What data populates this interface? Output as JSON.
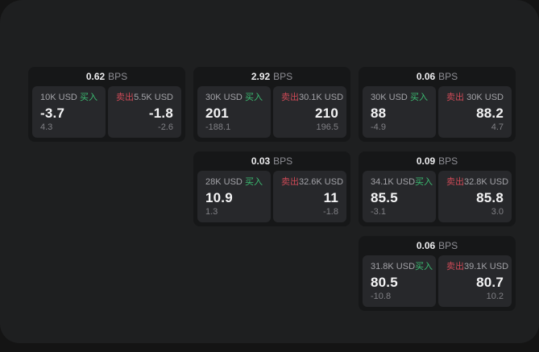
{
  "labels": {
    "bps_suffix": "BPS",
    "buy": "买入",
    "sell": "卖出"
  },
  "colors": {
    "buy_accent": "#3BBD72",
    "sell_accent": "#CE4A57",
    "panel_bg": "#1E1F20",
    "card_bg": "#161718",
    "pane_bg": "#27282B"
  },
  "cards": [
    {
      "col": 1,
      "row": 1,
      "bps": "0.62",
      "buy": {
        "amount": "10K USD",
        "value": "-3.7",
        "delta": "4.3"
      },
      "sell": {
        "amount": "5.5K USD",
        "value": "-1.8",
        "delta": "-2.6"
      }
    },
    {
      "col": 2,
      "row": 1,
      "bps": "2.92",
      "buy": {
        "amount": "30K USD",
        "value": "201",
        "delta": "-188.1"
      },
      "sell": {
        "amount": "30.1K USD",
        "value": "210",
        "delta": "196.5"
      }
    },
    {
      "col": 3,
      "row": 1,
      "bps": "0.06",
      "buy": {
        "amount": "30K USD",
        "value": "88",
        "delta": "-4.9"
      },
      "sell": {
        "amount": "30K USD",
        "value": "88.2",
        "delta": "4.7"
      }
    },
    {
      "col": 2,
      "row": 2,
      "bps": "0.03",
      "buy": {
        "amount": "28K USD",
        "value": "10.9",
        "delta": "1.3"
      },
      "sell": {
        "amount": "32.6K USD",
        "value": "11",
        "delta": "-1.8"
      }
    },
    {
      "col": 3,
      "row": 2,
      "bps": "0.09",
      "buy": {
        "amount": "34.1K USD",
        "value": "85.5",
        "delta": "-3.1"
      },
      "sell": {
        "amount": "32.8K USD",
        "value": "85.8",
        "delta": "3.0"
      }
    },
    {
      "col": 3,
      "row": 3,
      "bps": "0.06",
      "buy": {
        "amount": "31.8K USD",
        "value": "80.5",
        "delta": "-10.8"
      },
      "sell": {
        "amount": "39.1K USD",
        "value": "80.7",
        "delta": "10.2"
      }
    }
  ]
}
